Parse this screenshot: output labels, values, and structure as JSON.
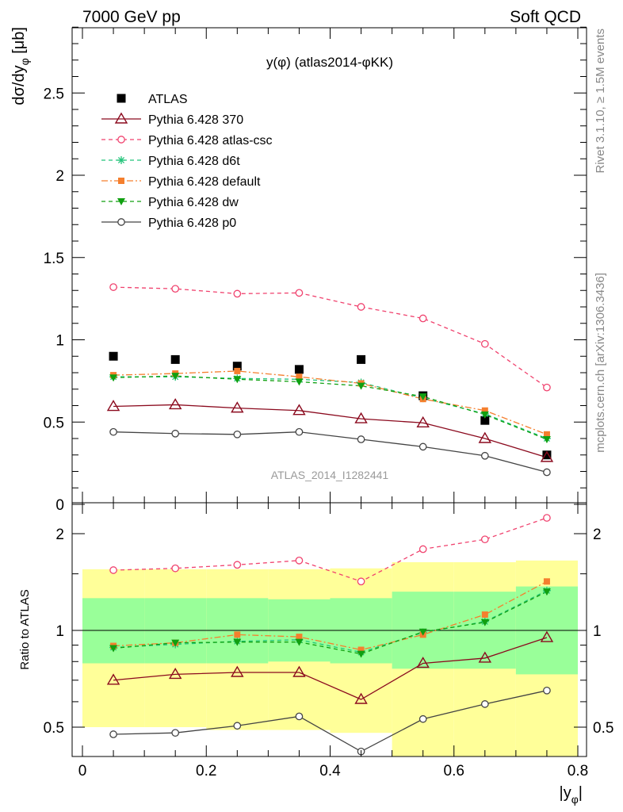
{
  "header": {
    "left": "7000 GeV pp",
    "right": "Soft QCD"
  },
  "side_labels": {
    "rivet": "Rivet 3.1.10, ≥ 1.5M events",
    "mcplots": "mcplots.cern.ch [arXiv:1306.3436]"
  },
  "watermark": "ATLAS_2014_I1282441",
  "colors": {
    "data": "#000000",
    "p370": "#8b0a1e",
    "atlas_csc": "#f0426e",
    "d6t": "#22c47a",
    "default": "#f57f2e",
    "dw": "#10a010",
    "p0": "#444444",
    "band_yellow": "#ffff99",
    "band_green": "#99ff99"
  },
  "chart_data": [
    {
      "type": "line",
      "title": "y(φ) (atlas2014-φKK)",
      "ylabel": "dσ/dy_φ [μb]",
      "xlabel": "",
      "xlim": [
        0,
        0.8
      ],
      "ylim": [
        0,
        2.95
      ],
      "yticks": [
        "0",
        "0.5",
        "1",
        "1.5",
        "2",
        "2.5"
      ],
      "x": [
        0.05,
        0.15,
        0.25,
        0.35,
        0.45,
        0.55,
        0.65,
        0.75
      ],
      "series": [
        {
          "name": "ATLAS",
          "key": "data",
          "marker": "square",
          "values": [
            0.9,
            0.88,
            0.84,
            0.82,
            0.88,
            0.66,
            0.51,
            0.3
          ]
        },
        {
          "name": "Pythia 6.428 370",
          "key": "p370",
          "marker": "triangle",
          "dash": "solid",
          "values": [
            0.595,
            0.605,
            0.585,
            0.57,
            0.52,
            0.495,
            0.4,
            0.285
          ]
        },
        {
          "name": "Pythia 6.428 atlas-csc",
          "key": "atlas_csc",
          "marker": "circle",
          "dash": "dashed",
          "values": [
            1.32,
            1.31,
            1.28,
            1.285,
            1.2,
            1.13,
            0.975,
            0.71
          ]
        },
        {
          "name": "Pythia 6.428 d6t",
          "key": "d6t",
          "marker": "star",
          "dash": "dashed",
          "values": [
            0.775,
            0.775,
            0.765,
            0.76,
            0.74,
            0.645,
            0.55,
            0.4
          ]
        },
        {
          "name": "Pythia 6.428 default",
          "key": "default",
          "marker": "square",
          "dash": "dashdot",
          "values": [
            0.785,
            0.795,
            0.81,
            0.775,
            0.735,
            0.64,
            0.57,
            0.425
          ]
        },
        {
          "name": "Pythia 6.428 dw",
          "key": "dw",
          "marker": "tridown",
          "dash": "dashed",
          "values": [
            0.77,
            0.78,
            0.76,
            0.745,
            0.72,
            0.655,
            0.545,
            0.395
          ]
        },
        {
          "name": "Pythia 6.428 p0",
          "key": "p0",
          "marker": "circle",
          "dash": "solid",
          "values": [
            0.44,
            0.43,
            0.425,
            0.44,
            0.395,
            0.35,
            0.295,
            0.195
          ]
        }
      ]
    },
    {
      "type": "line",
      "title": "",
      "ylabel": "Ratio to ATLAS",
      "xlabel": "|y_φ|",
      "xlim": [
        0,
        0.8
      ],
      "ylim": [
        0.34,
        2.22
      ],
      "xticks": [
        "0",
        "0.2",
        "0.4",
        "0.6",
        "0.8"
      ],
      "yticks": [
        "0.5",
        "1",
        "2"
      ],
      "bins": [
        [
          0.0,
          0.1
        ],
        [
          0.1,
          0.2
        ],
        [
          0.2,
          0.3
        ],
        [
          0.3,
          0.4
        ],
        [
          0.4,
          0.5
        ],
        [
          0.5,
          0.6
        ],
        [
          0.6,
          0.7
        ],
        [
          0.7,
          0.8
        ]
      ],
      "band_green": [
        [
          0.79,
          1.26
        ],
        [
          0.79,
          1.26
        ],
        [
          0.79,
          1.26
        ],
        [
          0.8,
          1.25
        ],
        [
          0.79,
          1.26
        ],
        [
          0.76,
          1.32
        ],
        [
          0.76,
          1.32
        ],
        [
          0.73,
          1.37
        ]
      ],
      "band_yellow": [
        [
          0.5,
          1.55
        ],
        [
          0.5,
          1.55
        ],
        [
          0.49,
          1.55
        ],
        [
          0.49,
          1.55
        ],
        [
          0.48,
          1.56
        ],
        [
          0.34,
          1.63
        ],
        [
          0.34,
          1.63
        ],
        [
          0.34,
          1.65
        ]
      ],
      "x": [
        0.05,
        0.15,
        0.25,
        0.35,
        0.45,
        0.55,
        0.65,
        0.75
      ],
      "series": [
        {
          "name": "Pythia 6.428 370",
          "key": "p370",
          "marker": "triangle",
          "dash": "solid",
          "values": [
            0.7,
            0.73,
            0.74,
            0.74,
            0.61,
            0.79,
            0.82,
            0.95
          ]
        },
        {
          "name": "Pythia 6.428 atlas-csc",
          "key": "atlas_csc",
          "marker": "circle",
          "dash": "dashed",
          "values": [
            1.54,
            1.56,
            1.6,
            1.65,
            1.42,
            1.79,
            1.92,
            2.24
          ]
        },
        {
          "name": "Pythia 6.428 d6t",
          "key": "d6t",
          "marker": "star",
          "dash": "dashed",
          "values": [
            0.885,
            0.905,
            0.925,
            0.935,
            0.855,
            0.985,
            1.065,
            1.33
          ]
        },
        {
          "name": "Pythia 6.428 default",
          "key": "default",
          "marker": "square",
          "dash": "dashdot",
          "values": [
            0.895,
            0.915,
            0.97,
            0.955,
            0.87,
            0.97,
            1.12,
            1.42
          ]
        },
        {
          "name": "Pythia 6.428 dw",
          "key": "dw",
          "marker": "tridown",
          "dash": "dashed",
          "values": [
            0.88,
            0.915,
            0.92,
            0.92,
            0.845,
            0.99,
            1.06,
            1.32
          ]
        },
        {
          "name": "Pythia 6.428 p0",
          "key": "p0",
          "marker": "circle",
          "dash": "solid",
          "values": [
            0.475,
            0.48,
            0.505,
            0.54,
            0.42,
            0.53,
            0.59,
            0.65
          ]
        }
      ]
    }
  ]
}
